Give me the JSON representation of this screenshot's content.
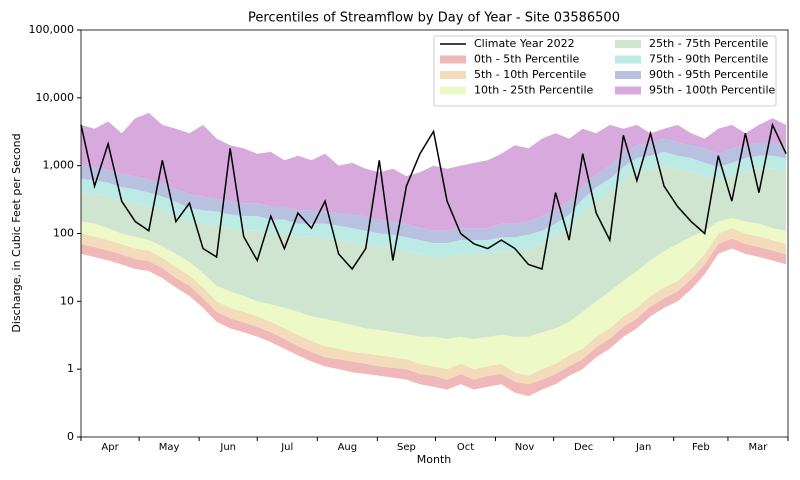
{
  "chart_data": {
    "type": "line",
    "title": "Percentiles of Streamflow by Day of Year - Site 03586500",
    "xlabel": "Month",
    "ylabel": "Discharge, in Cubic Feet per Second",
    "yscale": "log",
    "ylim": [
      0.1,
      100000
    ],
    "yticks": [
      {
        "value": 0.1,
        "label": "0"
      },
      1,
      10,
      100,
      {
        "value": 1000,
        "label": "1,000"
      },
      {
        "value": 10000,
        "label": "10,000"
      },
      {
        "value": 100000,
        "label": "100,000"
      }
    ],
    "xlim": [
      0,
      365
    ],
    "xticks": [
      0,
      30,
      61,
      91,
      122,
      153,
      183,
      214,
      244,
      275,
      306,
      334,
      365
    ],
    "categories": [
      "Apr",
      "May",
      "Jun",
      "Jul",
      "Aug",
      "Sep",
      "Oct",
      "Nov",
      "Dec",
      "Jan",
      "Feb",
      "Mar"
    ],
    "legend": "upper right",
    "x": [
      0,
      7,
      14,
      21,
      28,
      35,
      42,
      49,
      56,
      63,
      70,
      77,
      84,
      91,
      98,
      105,
      112,
      119,
      126,
      133,
      140,
      147,
      154,
      161,
      168,
      175,
      182,
      189,
      196,
      203,
      210,
      217,
      224,
      231,
      238,
      245,
      252,
      259,
      266,
      273,
      280,
      287,
      294,
      301,
      308,
      315,
      322,
      329,
      336,
      343,
      350,
      357,
      364
    ],
    "minimum": [
      50,
      45,
      40,
      35,
      30,
      28,
      22,
      16,
      12,
      8,
      5,
      4,
      3.5,
      3,
      2.5,
      2,
      1.6,
      1.3,
      1.1,
      1,
      0.9,
      0.85,
      0.8,
      0.75,
      0.7,
      0.6,
      0.55,
      0.5,
      0.6,
      0.5,
      0.55,
      0.6,
      0.45,
      0.4,
      0.5,
      0.6,
      0.8,
      1,
      1.5,
      2,
      3,
      4,
      6,
      8,
      10,
      15,
      25,
      50,
      60,
      50,
      45,
      40,
      35
    ],
    "series": [
      {
        "name": "Climate Year 2022",
        "type": "line",
        "color": "#000000",
        "values": [
          4000,
          500,
          2100,
          300,
          150,
          110,
          1200,
          150,
          280,
          60,
          45,
          1800,
          90,
          40,
          180,
          60,
          200,
          120,
          300,
          50,
          30,
          60,
          1200,
          40,
          500,
          1500,
          3200,
          300,
          100,
          70,
          60,
          80,
          60,
          35,
          30,
          400,
          80,
          1500,
          200,
          80,
          2800,
          600,
          3000,
          500,
          250,
          150,
          100,
          1400,
          300,
          3000,
          400,
          4000,
          1500
        ]
      },
      {
        "name": "0th - 5th Percentile",
        "type": "band",
        "color": "#f0b8b8",
        "values": [
          70,
          63,
          56,
          49,
          42,
          39,
          31,
          22,
          17,
          11,
          7,
          5.6,
          4.9,
          4.2,
          3.5,
          2.8,
          2.2,
          1.8,
          1.5,
          1.4,
          1.3,
          1.2,
          1.1,
          1.05,
          1,
          0.85,
          0.8,
          0.7,
          0.85,
          0.7,
          0.8,
          0.85,
          0.65,
          0.6,
          0.7,
          0.85,
          1.1,
          1.4,
          2.1,
          2.8,
          4.2,
          5.6,
          8.4,
          11,
          14,
          21,
          35,
          70,
          84,
          70,
          63,
          56,
          49
        ]
      },
      {
        "name": "5th - 10th Percentile",
        "type": "band",
        "color": "#f2dcbc",
        "values": [
          100,
          90,
          80,
          70,
          60,
          56,
          44,
          32,
          24,
          16,
          10,
          8,
          7,
          6,
          5,
          4,
          3.2,
          2.6,
          2.2,
          2,
          1.8,
          1.7,
          1.6,
          1.5,
          1.4,
          1.2,
          1.1,
          1,
          1.2,
          1,
          1.1,
          1.2,
          0.9,
          0.8,
          1,
          1.2,
          1.6,
          2,
          3,
          4,
          6,
          8,
          12,
          16,
          20,
          30,
          50,
          100,
          120,
          100,
          90,
          80,
          70
        ]
      },
      {
        "name": "10th - 25th Percentile",
        "type": "band",
        "color": "#eef9c8",
        "values": [
          150,
          140,
          120,
          100,
          90,
          80,
          65,
          50,
          38,
          26,
          17,
          14,
          12,
          10,
          9,
          8,
          7,
          6,
          5.5,
          5,
          4.5,
          4,
          3.8,
          3.5,
          3.3,
          3,
          3,
          2.8,
          3,
          2.8,
          3,
          3.2,
          3,
          3,
          3.5,
          4,
          5,
          7,
          10,
          14,
          20,
          28,
          40,
          55,
          70,
          90,
          110,
          150,
          170,
          150,
          140,
          120,
          110
        ]
      },
      {
        "name": "25th - 75th Percentile",
        "type": "band",
        "color": "#cfe5cf",
        "values": [
          400,
          380,
          350,
          300,
          280,
          250,
          220,
          180,
          150,
          140,
          130,
          120,
          110,
          110,
          100,
          100,
          90,
          90,
          85,
          80,
          75,
          70,
          65,
          60,
          55,
          50,
          45,
          45,
          50,
          50,
          50,
          55,
          55,
          60,
          70,
          90,
          120,
          200,
          300,
          400,
          600,
          800,
          900,
          1000,
          900,
          800,
          700,
          600,
          700,
          800,
          900,
          900,
          800
        ]
      },
      {
        "name": "75th - 90th Percentile",
        "type": "band",
        "color": "#bcebe5",
        "values": [
          640,
          610,
          560,
          480,
          450,
          400,
          350,
          290,
          240,
          220,
          210,
          190,
          180,
          180,
          160,
          160,
          140,
          140,
          140,
          130,
          120,
          110,
          100,
          96,
          88,
          80,
          72,
          72,
          80,
          80,
          80,
          88,
          88,
          96,
          110,
          140,
          190,
          320,
          480,
          640,
          960,
          1300,
          1400,
          1600,
          1400,
          1300,
          1100,
          960,
          1100,
          1300,
          1400,
          1400,
          1300
        ]
      },
      {
        "name": "90th - 95th Percentile",
        "type": "band",
        "color": "#b9c1e1",
        "values": [
          1000,
          950,
          880,
          750,
          700,
          620,
          550,
          450,
          380,
          350,
          320,
          300,
          280,
          280,
          250,
          250,
          220,
          220,
          210,
          200,
          190,
          180,
          160,
          150,
          140,
          120,
          110,
          110,
          120,
          120,
          120,
          140,
          140,
          150,
          180,
          220,
          300,
          500,
          750,
          1000,
          1500,
          2000,
          2200,
          2500,
          2200,
          2000,
          1800,
          1500,
          1800,
          2000,
          2200,
          2200,
          2000
        ]
      },
      {
        "name": "95th - 100th Percentile",
        "type": "band",
        "color": "#d8a9dd",
        "values": [
          4000,
          3500,
          4500,
          3000,
          5000,
          6000,
          4000,
          3500,
          3000,
          4000,
          2500,
          2000,
          1800,
          1500,
          1600,
          1200,
          1400,
          1200,
          1500,
          1000,
          1100,
          900,
          800,
          900,
          700,
          800,
          1000,
          900,
          1000,
          1100,
          1200,
          1500,
          2000,
          1800,
          2500,
          3000,
          2500,
          3500,
          3000,
          4000,
          3500,
          4000,
          3000,
          3500,
          4000,
          3000,
          2500,
          3500,
          4000,
          3000,
          4000,
          5000,
          4000
        ]
      }
    ]
  }
}
